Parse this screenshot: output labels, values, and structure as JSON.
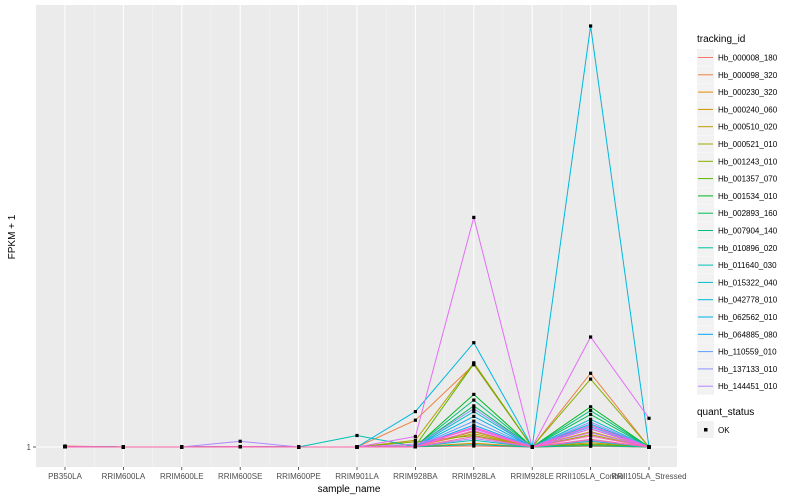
{
  "chart_data": {
    "type": "line",
    "xlabel": "sample_name",
    "ylabel": "FPKM + 1",
    "categories": [
      "PB350LA",
      "RRIM600LA",
      "RRIM600LE",
      "RRIM600SE",
      "RRIM600PE",
      "RRIM901LA",
      "RRIM928BA",
      "RRIM928LA",
      "RRIM928LE",
      "RRII105LA_Control",
      "RRII105LA_Stressed"
    ],
    "y_ticks": [
      "1"
    ],
    "grid": true,
    "background": "#ebebeb",
    "legend": {
      "position": "right",
      "color_title": "tracking_id",
      "shape_title": "quant_status",
      "shape_entry": "OK"
    },
    "series": [
      {
        "name": "Hb_000008_180",
        "color": "#F8766D",
        "values": [
          1.1,
          1.0,
          1.0,
          1.02,
          1.0,
          1.0,
          1.02,
          1.1,
          1.0,
          1.08,
          1.0
        ]
      },
      {
        "name": "Hb_000098_320",
        "color": "#EE8044",
        "values": [
          1.05,
          1.0,
          1.0,
          1.05,
          1.0,
          1.0,
          3.8,
          9.6,
          1.0,
          8.7,
          1.0
        ]
      },
      {
        "name": "Hb_000230_320",
        "color": "#E08B00",
        "values": [
          1.02,
          1.0,
          1.0,
          1.01,
          1.0,
          1.0,
          1.04,
          1.4,
          1.0,
          1.45,
          1.0
        ]
      },
      {
        "name": "Hb_000240_060",
        "color": "#CF9400",
        "values": [
          1.01,
          1.0,
          1.0,
          1.02,
          1.0,
          1.0,
          1.1,
          2.4,
          1.0,
          2.6,
          1.0
        ]
      },
      {
        "name": "Hb_000510_020",
        "color": "#BB9D00",
        "values": [
          1.03,
          1.0,
          1.0,
          1.01,
          1.0,
          1.0,
          1.7,
          9.8,
          1.0,
          1.2,
          1.0
        ]
      },
      {
        "name": "Hb_000521_010",
        "color": "#A3A500",
        "values": [
          1.01,
          1.0,
          1.0,
          1.01,
          1.0,
          1.0,
          1.06,
          2.6,
          1.0,
          2.3,
          1.0
        ]
      },
      {
        "name": "Hb_001243_010",
        "color": "#85AD00",
        "values": [
          1.02,
          1.0,
          1.0,
          1.02,
          1.0,
          1.0,
          1.55,
          2.2,
          1.0,
          8.1,
          1.0
        ]
      },
      {
        "name": "Hb_001357_070",
        "color": "#5BB300",
        "values": [
          1.01,
          1.0,
          1.0,
          1.01,
          1.0,
          1.0,
          1.12,
          9.7,
          1.0,
          1.3,
          1.0
        ]
      },
      {
        "name": "Hb_001534_010",
        "color": "#00B81F",
        "values": [
          1.02,
          1.0,
          1.0,
          1.01,
          1.0,
          1.0,
          1.03,
          6.5,
          1.0,
          5.2,
          1.0
        ]
      },
      {
        "name": "Hb_002893_160",
        "color": "#00BC59",
        "values": [
          1.01,
          1.0,
          1.0,
          1.02,
          1.0,
          1.0,
          1.02,
          5.3,
          1.0,
          4.4,
          1.0
        ]
      },
      {
        "name": "Hb_007904_140",
        "color": "#00BF7D",
        "values": [
          1.03,
          1.0,
          1.0,
          1.01,
          1.0,
          1.0,
          1.04,
          5.9,
          1.0,
          4.8,
          1.0
        ]
      },
      {
        "name": "Hb_010896_020",
        "color": "#00C19A",
        "values": [
          1.01,
          1.0,
          1.0,
          1.01,
          1.0,
          1.0,
          1.02,
          1.25,
          1.0,
          1.15,
          1.0
        ]
      },
      {
        "name": "Hb_011640_030",
        "color": "#00C0B3",
        "values": [
          1.02,
          1.0,
          1.0,
          1.01,
          1.0,
          2.2,
          1.05,
          1.7,
          1.0,
          1.6,
          1.0
        ]
      },
      {
        "name": "Hb_015322_040",
        "color": "#00BDC9",
        "values": [
          1.01,
          1.0,
          1.0,
          1.02,
          1.0,
          1.0,
          1.03,
          4.7,
          1.0,
          3.9,
          1.0
        ]
      },
      {
        "name": "Hb_042778_010",
        "color": "#00B8DC",
        "values": [
          1.01,
          1.0,
          1.0,
          1.01,
          1.0,
          1.0,
          4.7,
          11.9,
          1.0,
          45.0,
          1.0
        ]
      },
      {
        "name": "Hb_062562_010",
        "color": "#00B0EC",
        "values": [
          1.02,
          1.0,
          1.0,
          1.01,
          1.0,
          1.0,
          1.02,
          4.2,
          1.0,
          3.4,
          1.0
        ]
      },
      {
        "name": "Hb_064885_080",
        "color": "#00A5FA",
        "values": [
          1.01,
          1.0,
          1.0,
          1.02,
          1.0,
          1.0,
          1.04,
          3.3,
          1.0,
          2.9,
          1.0
        ]
      },
      {
        "name": "Hb_110559_010",
        "color": "#5D9CFF",
        "values": [
          1.01,
          1.0,
          1.0,
          1.01,
          1.0,
          1.0,
          1.02,
          3.7,
          1.0,
          3.1,
          1.0
        ]
      },
      {
        "name": "Hb_137133_010",
        "color": "#8F91FF",
        "values": [
          1.03,
          1.0,
          1.0,
          1.01,
          1.0,
          1.0,
          1.1,
          5.0,
          1.0,
          3.6,
          1.0
        ]
      },
      {
        "name": "Hb_144451_010",
        "color": "#B385FF",
        "values": [
          1.01,
          1.0,
          1.0,
          1.6,
          1.0,
          1.0,
          1.02,
          1.9,
          1.0,
          1.7,
          1.0
        ]
      }
    ],
    "extra_series": [
      {
        "color": "#CE79FF",
        "values": [
          1.02,
          1.0,
          1.0,
          1.01,
          1.0,
          1.0,
          1.3,
          2.9,
          1.0,
          2.5,
          1.0
        ]
      },
      {
        "color": "#E36EF6",
        "values": [
          1.01,
          1.0,
          1.0,
          1.02,
          1.0,
          1.0,
          2.1,
          25.0,
          1.0,
          12.5,
          4.0
        ]
      },
      {
        "color": "#F265E6",
        "values": [
          1.02,
          1.0,
          1.0,
          1.01,
          1.0,
          1.0,
          1.03,
          3.0,
          1.0,
          2.9,
          1.0
        ]
      },
      {
        "color": "#FD61D2",
        "values": [
          1.01,
          1.0,
          1.0,
          1.01,
          1.0,
          1.0,
          1.02,
          3.1,
          1.0,
          3.25,
          1.0
        ]
      },
      {
        "color": "#FF62BC",
        "values": [
          1.01,
          1.0,
          1.0,
          1.02,
          1.0,
          1.0,
          1.01,
          2.7,
          1.0,
          2.15,
          1.0
        ]
      },
      {
        "color": "#FF67A4",
        "values": [
          1.02,
          1.0,
          1.0,
          1.01,
          1.0,
          1.0,
          1.02,
          2.1,
          1.0,
          1.8,
          1.0
        ]
      }
    ]
  }
}
